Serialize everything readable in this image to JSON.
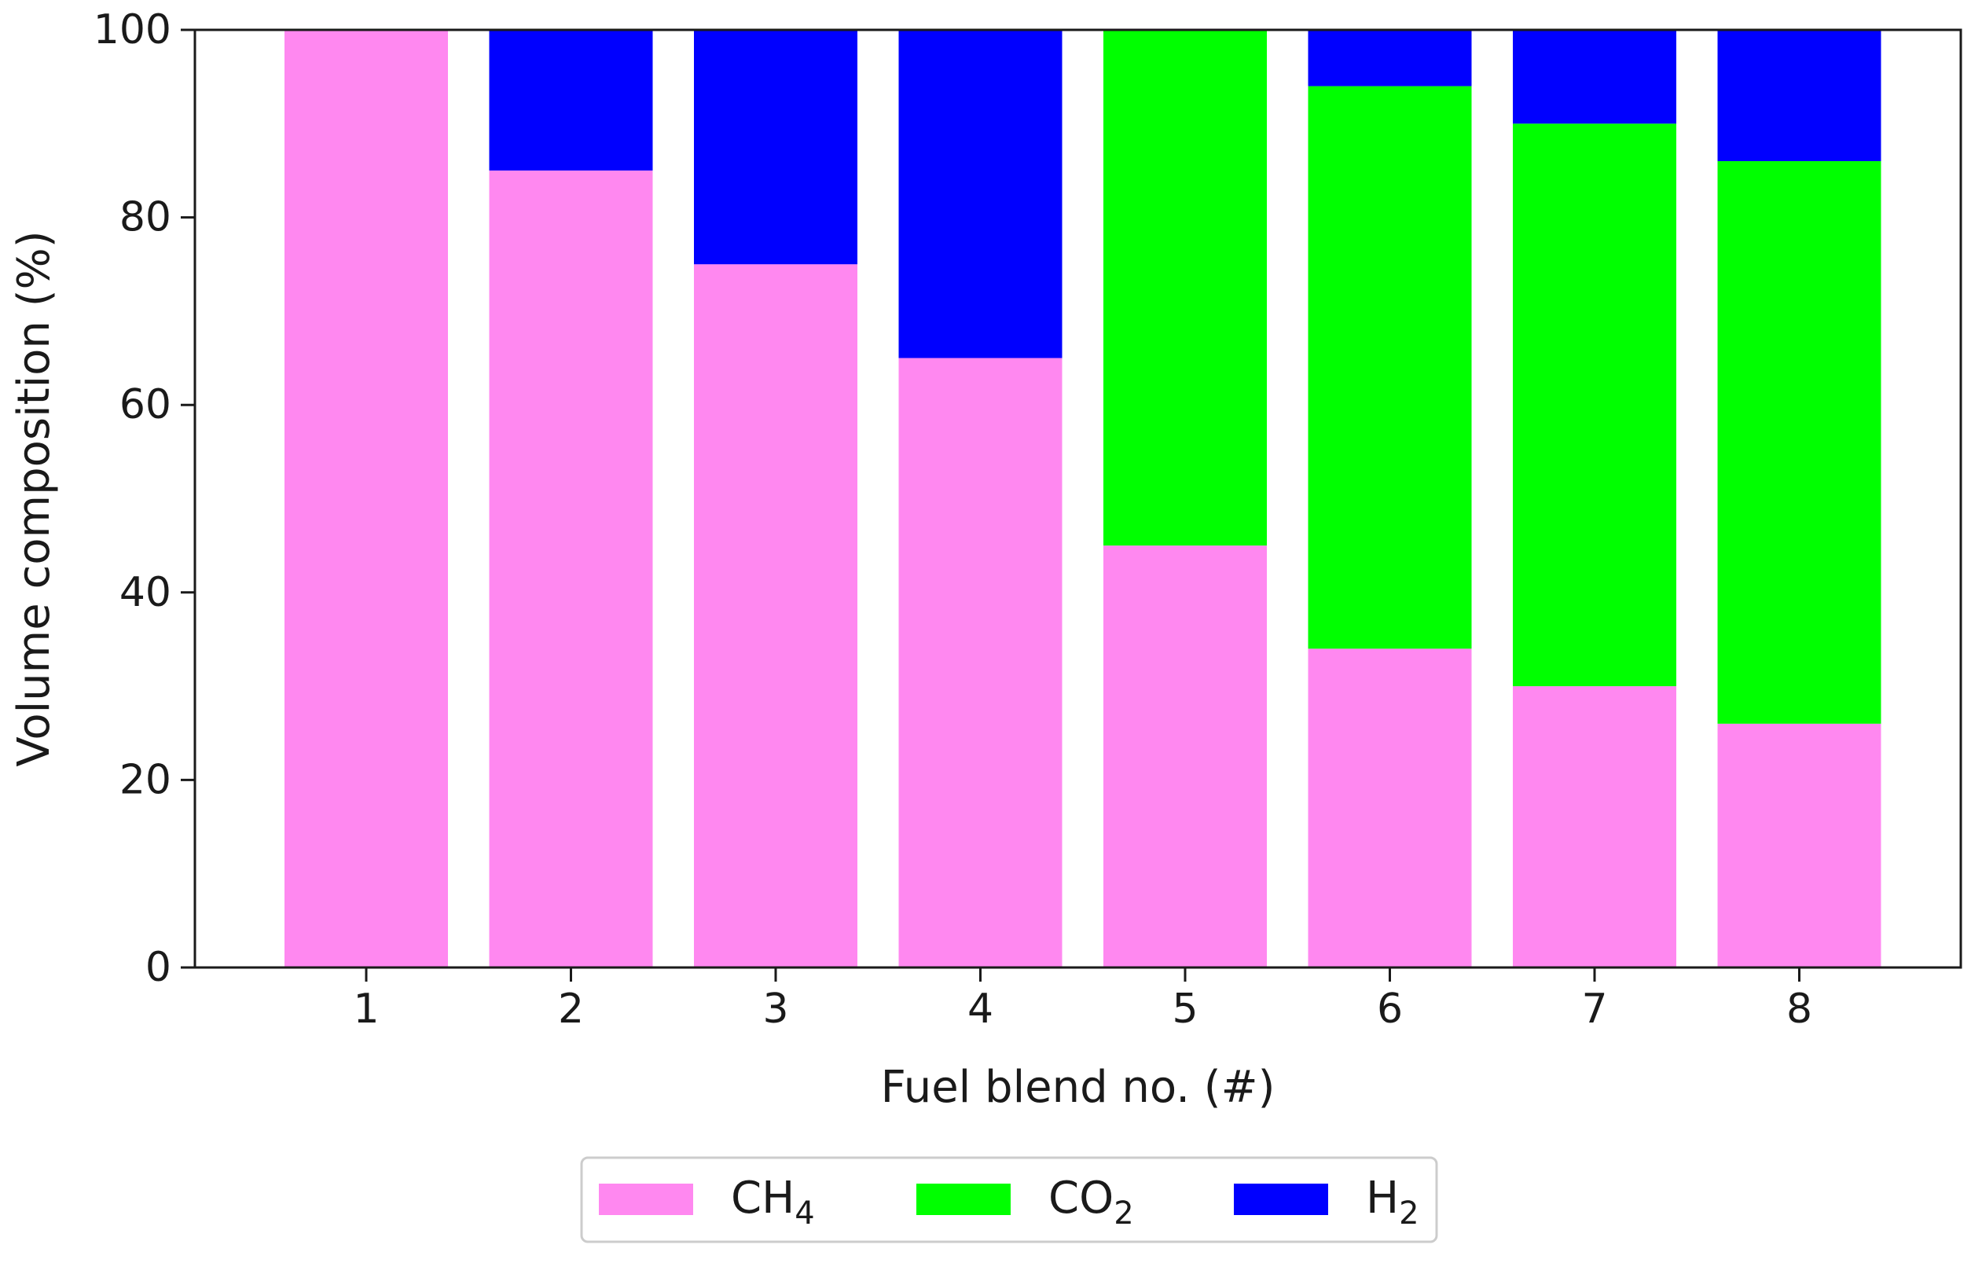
{
  "chart_data": {
    "type": "bar",
    "stacked": true,
    "categories": [
      "1",
      "2",
      "3",
      "4",
      "5",
      "6",
      "7",
      "8"
    ],
    "series": [
      {
        "name": "CH4",
        "label_base": "CH",
        "label_sub": "4",
        "color": "#ff88f0",
        "values": [
          100,
          85,
          75,
          65,
          45,
          34,
          30,
          26
        ]
      },
      {
        "name": "CO2",
        "label_base": "CO",
        "label_sub": "2",
        "color": "#00ff00",
        "values": [
          0,
          0,
          0,
          0,
          55,
          60,
          60,
          60
        ]
      },
      {
        "name": "H2",
        "label_base": "H",
        "label_sub": "2",
        "color": "#0000ff",
        "values": [
          0,
          15,
          25,
          35,
          0,
          6,
          10,
          14
        ]
      }
    ],
    "xlabel": "Fuel blend no. (#)",
    "ylabel": "Volume composition (%)",
    "ylim": [
      0,
      100
    ],
    "yticks": [
      0,
      20,
      40,
      60,
      80,
      100
    ],
    "grid": false,
    "legend_position": "bottom-center"
  }
}
